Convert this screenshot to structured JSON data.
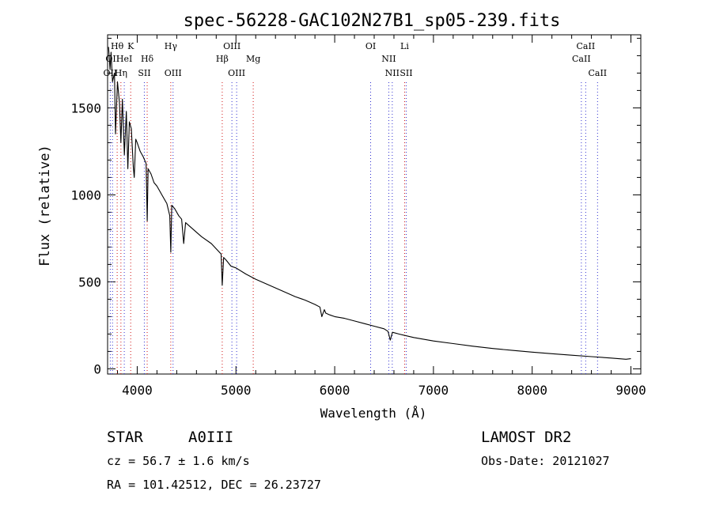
{
  "chart_data": {
    "type": "line",
    "title": "spec-56228-GAC102N27B1_sp05-239.fits",
    "xlabel": "Wavelength (Å)",
    "ylabel": "Flux (relative)",
    "xlim": [
      3700,
      9100
    ],
    "ylim": [
      -30,
      1920
    ],
    "xticks": [
      4000,
      5000,
      6000,
      7000,
      8000,
      9000
    ],
    "xtick_labels": [
      "4000",
      "5000",
      "6000",
      "7000",
      "8000",
      "9000"
    ],
    "yticks": [
      0,
      500,
      1000,
      1500
    ],
    "ytick_labels": [
      "0",
      "500",
      "1000",
      "1500"
    ],
    "grid": false,
    "series": [
      {
        "name": "spectrum",
        "x": [
          3710,
          3725,
          3735,
          3750,
          3770,
          3780,
          3800,
          3820,
          3835,
          3850,
          3870,
          3890,
          3905,
          3920,
          3940,
          3960,
          3970,
          3985,
          4000,
          4030,
          4060,
          4090,
          4101,
          4110,
          4140,
          4170,
          4200,
          4250,
          4300,
          4330,
          4340,
          4350,
          4380,
          4420,
          4450,
          4471,
          4490,
          4550,
          4650,
          4750,
          4800,
          4850,
          4861,
          4875,
          4900,
          4950,
          5000,
          5100,
          5200,
          5300,
          5400,
          5500,
          5600,
          5700,
          5800,
          5850,
          5870,
          5895,
          5910,
          5950,
          6000,
          6100,
          6200,
          6300,
          6400,
          6500,
          6540,
          6563,
          6585,
          6650,
          6800,
          7000,
          7200,
          7400,
          7600,
          7800,
          8000,
          8200,
          8400,
          8600,
          8800,
          8950,
          9000
        ],
        "y": [
          1850,
          1720,
          1820,
          1650,
          1700,
          1350,
          1650,
          1530,
          1300,
          1550,
          1230,
          1480,
          1150,
          1420,
          1380,
          1160,
          1100,
          1320,
          1300,
          1250,
          1220,
          1180,
          850,
          1150,
          1120,
          1070,
          1050,
          1000,
          950,
          880,
          670,
          940,
          920,
          880,
          860,
          720,
          840,
          810,
          760,
          720,
          690,
          660,
          480,
          640,
          625,
          590,
          580,
          545,
          515,
          490,
          465,
          440,
          415,
          395,
          370,
          355,
          300,
          340,
          320,
          310,
          300,
          290,
          275,
          260,
          245,
          230,
          215,
          165,
          210,
          200,
          180,
          160,
          145,
          130,
          117,
          106,
          96,
          87,
          78,
          70,
          62,
          55,
          58
        ]
      }
    ],
    "line_markers": [
      {
        "wavelength": 3727,
        "label": "OII",
        "row": 4,
        "style": "blue"
      },
      {
        "wavelength": 3750,
        "label": "OII",
        "row": 3,
        "style": "blue"
      },
      {
        "wavelength": 3797,
        "label": "Hθ",
        "row": 1,
        "style": "red"
      },
      {
        "wavelength": 3835,
        "label": "Hη",
        "row": 4,
        "style": "red"
      },
      {
        "wavelength": 3869,
        "label": "HeI",
        "row": 3,
        "style": "blue"
      },
      {
        "wavelength": 3934,
        "label": "K",
        "row": 1,
        "style": "red"
      },
      {
        "wavelength": 4072,
        "label": "SII",
        "row": 4,
        "style": "blue"
      },
      {
        "wavelength": 4101,
        "label": "Hδ",
        "row": 3,
        "style": "red"
      },
      {
        "wavelength": 4340,
        "label": "Hγ",
        "row": 1,
        "style": "red"
      },
      {
        "wavelength": 4363,
        "label": "OIII",
        "row": 4,
        "style": "blue"
      },
      {
        "wavelength": 4861,
        "label": "Hβ",
        "row": 3,
        "style": "red"
      },
      {
        "wavelength": 4959,
        "label": "OIII",
        "row": 1,
        "style": "blue"
      },
      {
        "wavelength": 5007,
        "label": "OIII",
        "row": 4,
        "style": "blue"
      },
      {
        "wavelength": 5175,
        "label": "Mg",
        "row": 3,
        "style": "red"
      },
      {
        "wavelength": 6364,
        "label": "OI",
        "row": 1,
        "style": "blue"
      },
      {
        "wavelength": 6548,
        "label": "NII",
        "row": 3,
        "style": "blue"
      },
      {
        "wavelength": 6583,
        "label": "NII",
        "row": 4,
        "style": "blue"
      },
      {
        "wavelength": 6708,
        "label": "Li",
        "row": 1,
        "style": "red"
      },
      {
        "wavelength": 6724,
        "label": "SII",
        "row": 4,
        "style": "blue"
      },
      {
        "wavelength": 8498,
        "label": "CaII",
        "row": 3,
        "style": "blue"
      },
      {
        "wavelength": 8542,
        "label": "CaII",
        "row": 1,
        "style": "blue"
      },
      {
        "wavelength": 8662,
        "label": "CaII",
        "row": 4,
        "style": "blue"
      }
    ]
  },
  "info": {
    "object_type": "STAR",
    "subclass": "A0III",
    "survey": "LAMOST DR2",
    "redshift": "cz = 56.7 ± 1.6 km/s",
    "obs_date": "Obs-Date: 20121027",
    "coordinates": "RA = 101.42512, DEC =  26.23727"
  },
  "colors": {
    "red_marker": "#d01010",
    "blue_marker": "#3030d0",
    "axis": "#000000"
  }
}
